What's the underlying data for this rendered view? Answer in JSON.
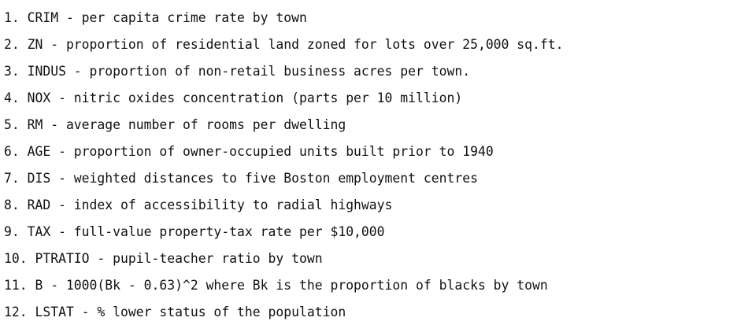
{
  "features": [
    "1. CRIM - per capita crime rate by town",
    "2. ZN - proportion of residential land zoned for lots over 25,000 sq.ft.",
    "3. INDUS - proportion of non-retail business acres per town.",
    "4. NOX - nitric oxides concentration (parts per 10 million)",
    "5. RM - average number of rooms per dwelling",
    "6. AGE - proportion of owner-occupied units built prior to 1940",
    "7. DIS - weighted distances to five Boston employment centres",
    "8. RAD - index of accessibility to radial highways",
    "9. TAX - full-value property-tax rate per $10,000",
    "10. PTRATIO - pupil-teacher ratio by town",
    "11. B - 1000(Bk - 0.63)^2 where Bk is the proportion of blacks by town",
    "12. LSTAT - % lower status of the population"
  ]
}
